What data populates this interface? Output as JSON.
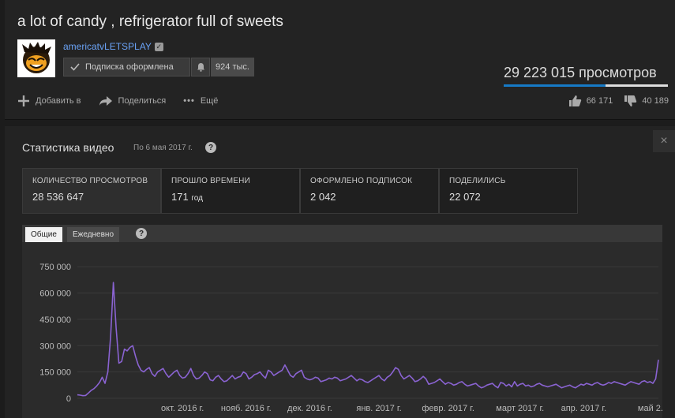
{
  "video": {
    "title": "a lot of candy , refrigerator full of sweets",
    "channel": "americatvLETSPLAY",
    "subscribe_label": "Подписка оформлена",
    "subscriber_count": "924 тыс.",
    "views": "29 223 015 просмотров",
    "like_ratio": 0.62
  },
  "actions": {
    "add": "Добавить в",
    "share": "Поделиться",
    "more": "Ещё"
  },
  "rating": {
    "likes": "66 171",
    "dislikes": "40 189"
  },
  "stats": {
    "title": "Статистика видео",
    "date": "По 6 мая 2017 г.",
    "metrics": [
      {
        "label": "Количество просмотров",
        "value": "28 536 647"
      },
      {
        "label": "Прошло времени",
        "value": "171",
        "unit": "год"
      },
      {
        "label": "Оформлено подписок",
        "value": "2 042"
      },
      {
        "label": "Поделились",
        "value": "22 072"
      }
    ],
    "tabs": [
      "Общие",
      "Ежедневно"
    ]
  },
  "chart_data": {
    "type": "line",
    "color": "#8a63d2",
    "ylim": [
      0,
      800000
    ],
    "yticks": [
      0,
      150000,
      300000,
      450000,
      600000,
      750000
    ],
    "ytick_labels": [
      "0",
      "150 000",
      "300 000",
      "450 000",
      "600 000",
      "750 000"
    ],
    "xtick_labels": [
      "окт. 2016 г.",
      "нояб. 2016 г.",
      "дек. 2016 г.",
      "янв. 2017 г.",
      "февр. 2017 г.",
      "март 2017 г.",
      "апр. 2017 г.",
      "май 2..."
    ],
    "values": [
      20000,
      18000,
      15000,
      16000,
      30000,
      45000,
      55000,
      70000,
      90000,
      120000,
      85000,
      150000,
      350000,
      660000,
      400000,
      200000,
      210000,
      280000,
      270000,
      290000,
      300000,
      240000,
      190000,
      160000,
      150000,
      165000,
      175000,
      140000,
      125000,
      150000,
      160000,
      170000,
      140000,
      120000,
      135000,
      150000,
      160000,
      130000,
      115000,
      120000,
      140000,
      170000,
      130000,
      110000,
      115000,
      130000,
      150000,
      140000,
      105000,
      100000,
      120000,
      130000,
      110000,
      95000,
      100000,
      115000,
      130000,
      110000,
      120000,
      125000,
      150000,
      140000,
      110000,
      120000,
      135000,
      140000,
      150000,
      130000,
      115000,
      160000,
      150000,
      130000,
      140000,
      150000,
      160000,
      190000,
      160000,
      130000,
      120000,
      140000,
      150000,
      160000,
      120000,
      110000,
      105000,
      110000,
      120000,
      115000,
      95000,
      100000,
      105000,
      115000,
      110000,
      120000,
      115000,
      100000,
      105000,
      110000,
      120000,
      130000,
      115000,
      100000,
      110000,
      105000,
      95000,
      90000,
      100000,
      110000,
      120000,
      130000,
      110000,
      100000,
      120000,
      130000,
      150000,
      175000,
      165000,
      130000,
      110000,
      120000,
      130000,
      115000,
      95000,
      100000,
      110000,
      125000,
      110000,
      80000,
      85000,
      90000,
      100000,
      110000,
      95000,
      80000,
      90000,
      85000,
      75000,
      80000,
      90000,
      95000,
      80000,
      70000,
      75000,
      80000,
      85000,
      70000,
      60000,
      65000,
      75000,
      80000,
      85000,
      70000,
      60000,
      90000,
      85000,
      70000,
      80000,
      65000,
      95000,
      70000,
      80000,
      85000,
      70000,
      75000,
      65000,
      70000,
      80000,
      85000,
      75000,
      70000,
      65000,
      70000,
      75000,
      80000,
      70000,
      60000,
      65000,
      70000,
      75000,
      65000,
      60000,
      70000,
      80000,
      75000,
      85000,
      80000,
      75000,
      85000,
      90000,
      80000,
      75000,
      80000,
      90000,
      85000,
      95000,
      90000,
      85000,
      80000,
      75000,
      85000,
      95000,
      90000,
      85000,
      80000,
      95000,
      100000,
      90000,
      95000,
      85000,
      110000,
      220000
    ],
    "xtick_positions": [
      18,
      29,
      40,
      52,
      64,
      76,
      87,
      99
    ]
  }
}
